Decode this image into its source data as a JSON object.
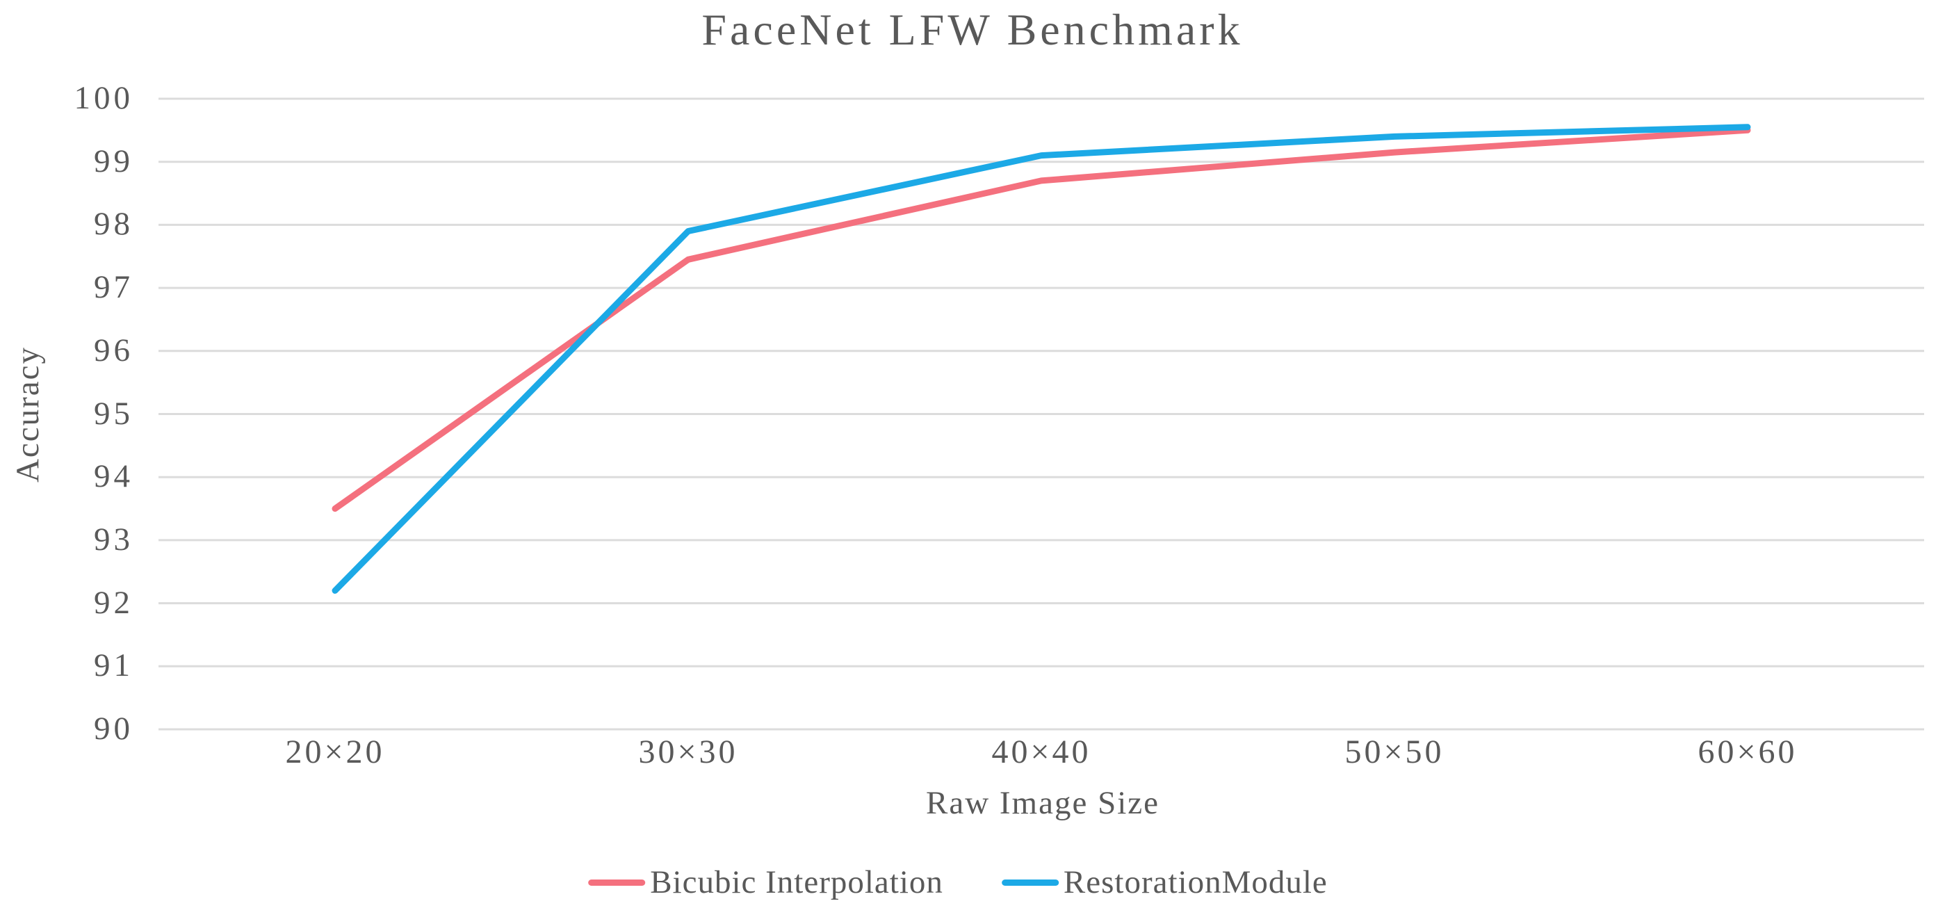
{
  "colors": {
    "background": "#FFFFFF",
    "gridline": "#DCDCDC",
    "text": "#595959",
    "bicubic_line": "#F4707E",
    "restoration_line": "#1CA9E6"
  },
  "chart_data": {
    "type": "line",
    "title": "FaceNet LFW Benchmark",
    "xlabel": "Raw Image Size",
    "ylabel": "Accuracy",
    "categories": [
      "20×20",
      "30×30",
      "40×40",
      "50×50",
      "60×60"
    ],
    "series": [
      {
        "name": "Bicubic Interpolation",
        "color": "#F4707E",
        "values": [
          93.5,
          97.45,
          98.7,
          99.15,
          99.5
        ]
      },
      {
        "name": "RestorationModule",
        "color": "#1CA9E6",
        "values": [
          92.2,
          97.9,
          99.1,
          99.4,
          99.55
        ]
      }
    ],
    "ylim": [
      90,
      100
    ],
    "yticks": [
      100,
      99,
      98,
      97,
      96,
      95,
      94,
      93,
      92,
      91,
      90
    ],
    "grid": true,
    "legend_position": "bottom"
  }
}
